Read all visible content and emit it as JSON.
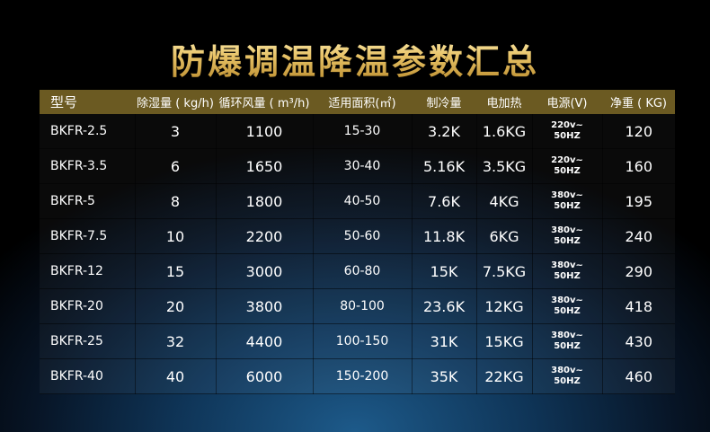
{
  "title": "防爆调温降温参数汇总",
  "colors": {
    "header_bg": "#6b5a22",
    "title_gold": "#e7c266"
  },
  "table": {
    "headers": [
      "型号",
      "除湿量 ( kg/h)",
      "循环风量 ( m³/h)",
      "适用面积(㎡)",
      "制冷量",
      "电加热",
      "电源(V)",
      "净重 ( KG)"
    ],
    "rows": [
      [
        "BKFR-2.5",
        "3",
        "1100",
        "15-30",
        "3.2K",
        "1.6KG",
        "220v~",
        "50HZ",
        "120"
      ],
      [
        "BKFR-3.5",
        "6",
        "1650",
        "30-40",
        "5.16K",
        "3.5KG",
        "220v~",
        "50HZ",
        "160"
      ],
      [
        "BKFR-5",
        "8",
        "1800",
        "40-50",
        "7.6K",
        "4KG",
        "380v~",
        "50HZ",
        "195"
      ],
      [
        "BKFR-7.5",
        "10",
        "2200",
        "50-60",
        "11.8K",
        "6KG",
        "380v~",
        "50HZ",
        "240"
      ],
      [
        "BKFR-12",
        "15",
        "3000",
        "60-80",
        "15K",
        "7.5KG",
        "380v~",
        "50HZ",
        "290"
      ],
      [
        "BKFR-20",
        "20",
        "3800",
        "80-100",
        "23.6K",
        "12KG",
        "380v~",
        "50HZ",
        "418"
      ],
      [
        "BKFR-25",
        "32",
        "4400",
        "100-150",
        "31K",
        "15KG",
        "380v~",
        "50HZ",
        "430"
      ],
      [
        "BKFR-40",
        "40",
        "6000",
        "150-200",
        "35K",
        "22KG",
        "380v~",
        "50HZ",
        "460"
      ]
    ]
  }
}
